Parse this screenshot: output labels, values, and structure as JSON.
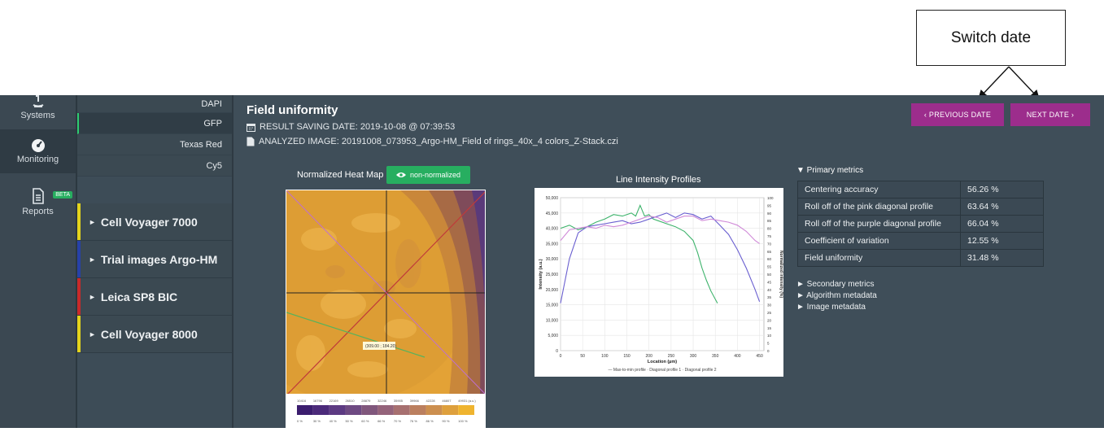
{
  "callout": {
    "label": "Switch date"
  },
  "nav": {
    "systems_label": "Systems",
    "monitoring_label": "Monitoring",
    "reports_label": "Reports",
    "beta_badge": "BETA"
  },
  "channels": [
    "DAPI",
    "GFP",
    "Texas Red",
    "Cy5"
  ],
  "systems": [
    {
      "name": "Cell Voyager 7000",
      "color": "#e3d31c"
    },
    {
      "name": "Trial images Argo-HM",
      "color": "#2741a8"
    },
    {
      "name": "Leica SP8 BIC",
      "color": "#c92a2a"
    },
    {
      "name": "Cell Voyager 8000",
      "color": "#e3d31c"
    }
  ],
  "page": {
    "title": "Field uniformity",
    "saving_date": "RESULT SAVING DATE: 2019-10-08 @ 07:39:53",
    "analyzed_image": "ANALYZED IMAGE: 20191008_073953_Argo-HM_Field of rings_40x_4 colors_Z-Stack.czi",
    "prev_date": "‹  PREVIOUS DATE",
    "next_date": "NEXT DATE  ›"
  },
  "heatmap": {
    "title": "Normalized Heat Map",
    "toggle_label": "non-normalized",
    "scale_ticks": [
      "10416",
      "16796",
      "22169",
      "26510",
      "28879",
      "32246",
      "35905",
      "39966",
      "42228",
      "46807",
      "49931 (a.u.)"
    ],
    "percent_ticks": [
      "0 %",
      "30 %",
      "40 %",
      "50 %",
      "60 %",
      "66 %",
      "70 %",
      "76 %",
      "86 %",
      "90 %",
      "100 %"
    ],
    "marker_label": "(309.00 ; 184.20)"
  },
  "line_chart": {
    "title": "Line Intensity Profiles",
    "xlabel": "Location (µm)",
    "ylabel": "Intensity (a.u.)",
    "y2label": "Normalized intensity (%)",
    "x_ticks": [
      "0",
      "50",
      "100",
      "150",
      "200",
      "250",
      "300",
      "350",
      "400",
      "450"
    ],
    "y_ticks": [
      "0",
      "5,000",
      "10,000",
      "15,000",
      "20,000",
      "25,000",
      "30,000",
      "35,000",
      "40,000",
      "45,000",
      "50,000"
    ],
    "y2_ticks": [
      "0",
      "5",
      "10",
      "15",
      "20",
      "25",
      "30",
      "35",
      "40",
      "45",
      "50",
      "55",
      "60",
      "65",
      "70",
      "75",
      "80",
      "85",
      "90",
      "95",
      "100"
    ],
    "legend": "— Max-to-min profile  · Diagonal profile 1  · Diagonal profile 2"
  },
  "chart_data": {
    "type": "line",
    "title": "Line Intensity Profiles",
    "xlabel": "Location (µm)",
    "ylabel": "Intensity (a.u.)",
    "xlim": [
      0,
      460
    ],
    "ylim": [
      0,
      50000
    ],
    "series": [
      {
        "name": "Max-to-min profile",
        "color": "#3db36b",
        "x": [
          0,
          20,
          40,
          60,
          80,
          100,
          120,
          140,
          160,
          170,
          180,
          190,
          200,
          210,
          220,
          240,
          260,
          280,
          300,
          310,
          320,
          330,
          340,
          355
        ],
        "y": [
          40000,
          41000,
          39500,
          40500,
          42000,
          43000,
          44500,
          44000,
          45000,
          44000,
          47500,
          44000,
          44500,
          43000,
          42500,
          41500,
          40500,
          39000,
          36000,
          32000,
          27000,
          23000,
          19500,
          15500
        ]
      },
      {
        "name": "Diagonal profile 1",
        "color": "#6a5fd0",
        "x": [
          0,
          20,
          40,
          60,
          80,
          100,
          120,
          140,
          160,
          180,
          200,
          220,
          240,
          260,
          280,
          300,
          320,
          340,
          360,
          380,
          400,
          420,
          440,
          450
        ],
        "y": [
          15500,
          30000,
          38500,
          40500,
          41000,
          41500,
          42000,
          42500,
          41500,
          42000,
          43000,
          44000,
          45000,
          43500,
          45000,
          44500,
          43000,
          44000,
          41000,
          38000,
          33000,
          27000,
          20000,
          16000
        ]
      },
      {
        "name": "Diagonal profile 2",
        "color": "#d08ad8",
        "x": [
          0,
          20,
          40,
          60,
          80,
          100,
          120,
          140,
          160,
          180,
          200,
          220,
          240,
          260,
          280,
          300,
          320,
          340,
          360,
          380,
          400,
          420,
          440,
          450
        ],
        "y": [
          36000,
          39500,
          40000,
          40500,
          40000,
          41000,
          40500,
          41000,
          42000,
          43000,
          44000,
          43500,
          42000,
          43000,
          44000,
          44000,
          42500,
          43000,
          42500,
          42000,
          41000,
          39000,
          36000,
          35000
        ]
      }
    ]
  },
  "metrics": {
    "primary_label": "▼ Primary metrics",
    "rows": [
      {
        "name": "Centering accuracy",
        "value": "56.26 %"
      },
      {
        "name": "Roll off of the pink diagonal profile",
        "value": "63.64 %"
      },
      {
        "name": "Roll off of the purple diagonal profile",
        "value": "66.04 %"
      },
      {
        "name": "Coefficient of variation",
        "value": "12.55 %"
      },
      {
        "name": "Field uniformity",
        "value": "31.48 %"
      }
    ],
    "secondary_label": "► Secondary metrics",
    "algorithm_label": "► Algorithm metadata",
    "image_label": "► Image metadata"
  }
}
